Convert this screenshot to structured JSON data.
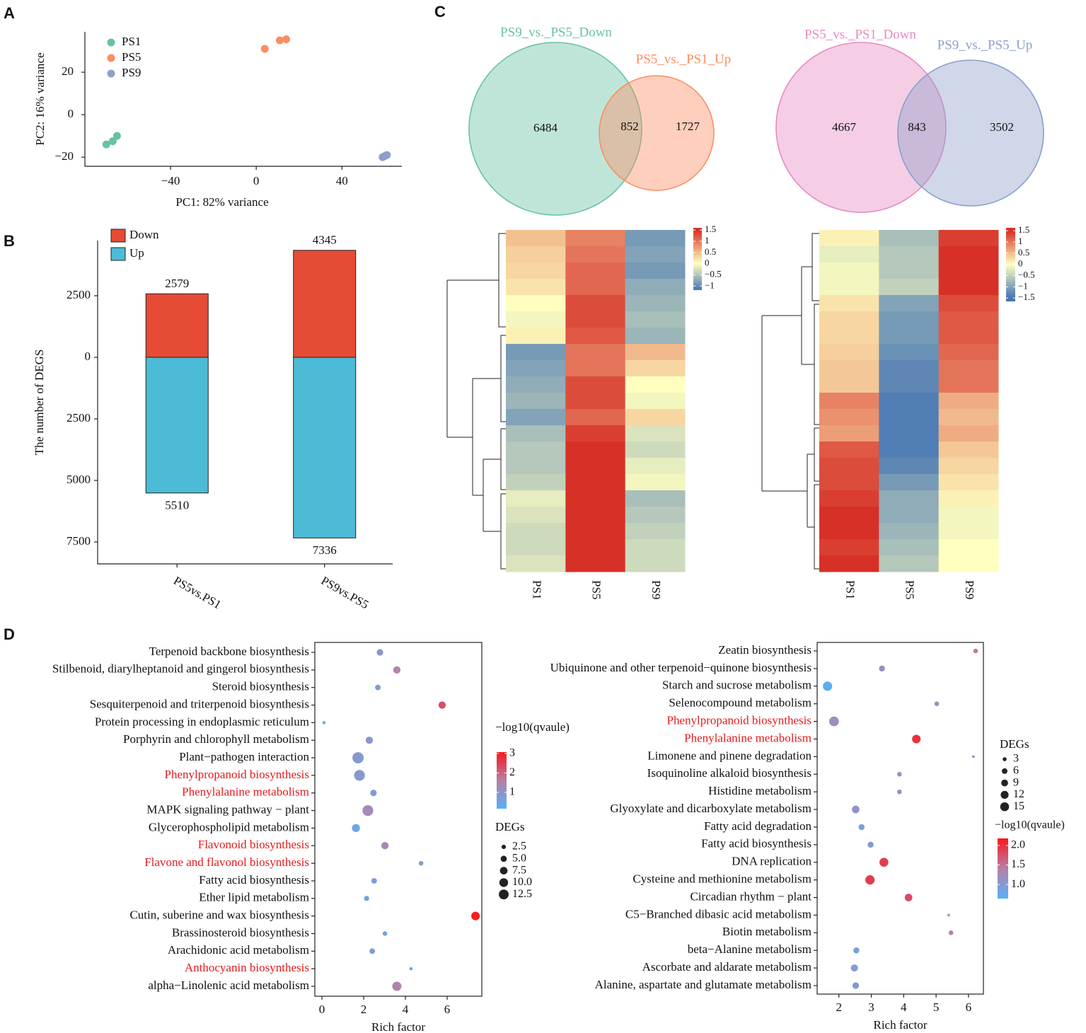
{
  "panels": [
    "A",
    "B",
    "C",
    "D"
  ],
  "chart_data": [
    {
      "type": "scatter",
      "xlabel": "PC1: 82% variance",
      "ylabel": "PC2: 16% variance",
      "xlim": [
        -80,
        68
      ],
      "ylim": [
        -24.3,
        39
      ],
      "xticks": [
        {
          "value": -40,
          "label": "−40"
        },
        0,
        40
      ],
      "yticks": [
        {
          "value": -20,
          "label": "−20"
        },
        0,
        20
      ],
      "legend": "upper left",
      "series": [
        {
          "name": "PS1",
          "color": "#66c2a5",
          "x": [
            -70,
            -67,
            -65
          ],
          "y": [
            -14,
            -12.5,
            -10
          ]
        },
        {
          "name": "PS5",
          "color": "#fc8d62",
          "x": [
            4,
            11,
            14
          ],
          "y": [
            31,
            35,
            35.5
          ]
        },
        {
          "name": "PS9",
          "color": "#8da0cb",
          "x": [
            59,
            60,
            61
          ],
          "y": [
            -20,
            -19.5,
            -19
          ]
        }
      ]
    },
    {
      "type": "bar",
      "ylabel": "The number of DEGS",
      "categories": [
        "PS5vs.PS1",
        "PS9vs.PS5"
      ],
      "ylim": [
        -8390,
        5316
      ],
      "yticks": [
        {
          "value": -7500,
          "label": "7500"
        },
        {
          "value": -5000,
          "label": "5000"
        },
        {
          "value": -2500,
          "label": "2500"
        },
        0,
        2500
      ],
      "legend": "upper left",
      "series": [
        {
          "name": "Down",
          "color": "#e64b35",
          "values": [
            2579,
            4345
          ]
        },
        {
          "name": "Up",
          "color": "#4dbbd5",
          "values": [
            -5510,
            -7336
          ],
          "value_labels": [
            "5510",
            "7336"
          ]
        }
      ]
    },
    {
      "type": "venn",
      "sets": [
        {
          "name": "PS9_vs._PS5_Down",
          "color": "#66c2a5"
        },
        {
          "name": "PS5_vs._PS1_Up",
          "color": "#fc8d62"
        }
      ],
      "counts": [
        6484,
        852,
        1727
      ]
    },
    {
      "type": "venn",
      "sets": [
        {
          "name": "PS5_vs._PS1_Down",
          "color": "#e78ac3"
        },
        {
          "name": "PS9_vs._PS5_Up",
          "color": "#8da0cb"
        }
      ],
      "counts": [
        4667,
        843,
        3502
      ]
    },
    {
      "type": "heatmap",
      "columns": [
        "PS1",
        "PS5",
        "PS9"
      ],
      "values": [
        [
          0.45,
          0.9,
          -1.1
        ],
        [
          0.35,
          1.0,
          -1.0
        ],
        [
          0.3,
          1.1,
          -1.1
        ],
        [
          0.2,
          1.1,
          -0.9
        ],
        [
          0.0,
          1.3,
          -0.8
        ],
        [
          -0.1,
          1.3,
          -0.7
        ],
        [
          0.1,
          1.2,
          -0.8
        ],
        [
          -1.1,
          1.0,
          0.5
        ],
        [
          -1.0,
          1.0,
          0.3
        ],
        [
          -0.9,
          1.3,
          0.0
        ],
        [
          -0.8,
          1.3,
          -0.1
        ],
        [
          -1.0,
          1.1,
          0.3
        ],
        [
          -0.7,
          1.4,
          -0.3
        ],
        [
          -0.6,
          1.5,
          -0.4
        ],
        [
          -0.6,
          1.5,
          -0.2
        ],
        [
          -0.5,
          1.5,
          -0.1
        ],
        [
          -0.2,
          1.5,
          -0.7
        ],
        [
          -0.3,
          1.5,
          -0.6
        ],
        [
          -0.4,
          1.5,
          -0.5
        ],
        [
          -0.4,
          1.5,
          -0.4
        ],
        [
          -0.3,
          1.5,
          -0.4
        ]
      ],
      "clim": [
        -1.18,
        1.6
      ],
      "cticks": [
        1.5,
        1,
        0.5,
        0,
        {
          "value": -0.5,
          "label": "−0.5"
        },
        {
          "value": -1,
          "label": "−1"
        }
      ],
      "color_stops": [
        {
          "value": -1.5,
          "color": "#4575b4"
        },
        {
          "value": 0,
          "color": "#ffffbf"
        },
        {
          "value": 1.5,
          "color": "#d73027"
        }
      ]
    },
    {
      "type": "heatmap",
      "columns": [
        "PS1",
        "PS5",
        "PS9"
      ],
      "values": [
        [
          0.1,
          -0.7,
          1.4
        ],
        [
          -0.2,
          -0.6,
          1.5
        ],
        [
          -0.1,
          -0.6,
          1.5
        ],
        [
          -0.1,
          -0.5,
          1.5
        ],
        [
          0.2,
          -1.0,
          1.3
        ],
        [
          0.3,
          -1.1,
          1.2
        ],
        [
          0.3,
          -1.1,
          1.2
        ],
        [
          0.35,
          -1.2,
          1.1
        ],
        [
          0.4,
          -1.3,
          1.0
        ],
        [
          0.4,
          -1.3,
          1.0
        ],
        [
          0.9,
          -1.4,
          0.6
        ],
        [
          0.8,
          -1.4,
          0.5
        ],
        [
          0.7,
          -1.4,
          0.6
        ],
        [
          1.2,
          -1.4,
          0.4
        ],
        [
          1.3,
          -1.3,
          0.3
        ],
        [
          1.3,
          -1.1,
          0.2
        ],
        [
          1.4,
          -0.9,
          0.1
        ],
        [
          1.5,
          -0.9,
          -0.1
        ],
        [
          1.5,
          -0.8,
          -0.1
        ],
        [
          1.4,
          -0.7,
          0.0
        ],
        [
          1.5,
          -0.6,
          0.0
        ]
      ],
      "clim": [
        -1.65,
        1.63
      ],
      "cticks": [
        1.5,
        1,
        0.5,
        0,
        {
          "value": -0.5,
          "label": "−0.5"
        },
        {
          "value": -1,
          "label": "−1"
        },
        {
          "value": -1.5,
          "label": "−1.5"
        }
      ],
      "color_stops": [
        {
          "value": -1.5,
          "color": "#4575b4"
        },
        {
          "value": 0,
          "color": "#ffffbf"
        },
        {
          "value": 1.5,
          "color": "#d73027"
        }
      ]
    },
    {
      "type": "bubble",
      "xlabel": "Rich factor",
      "xlim": [
        -0.34,
        7.66
      ],
      "xticks": [
        0,
        2,
        4,
        6
      ],
      "categories": [
        "Terpenoid backbone biosynthesis",
        "Stilbenoid, diarylheptanoid and gingerol biosynthesis",
        "Steroid biosynthesis",
        "Sesquiterpenoid and triterpenoid biosynthesis",
        "Protein processing in endoplasmic reticulum",
        "Porphyrin and chlorophyll metabolism",
        "Plant−pathogen interaction",
        "Phenylpropanoid biosynthesis",
        "Phenylalanine metabolism",
        "MAPK signaling pathway − plant",
        "Glycerophospholipid metabolism",
        "Flavonoid biosynthesis",
        "Flavone and flavonol biosynthesis",
        "Fatty acid biosynthesis",
        "Ether lipid metabolism",
        "Cutin, suberine and wax biosynthesis",
        "Brassinosteroid biosynthesis",
        "Arachidonic acid metabolism",
        "Anthocyanin biosynthesis",
        "alpha−Linolenic acid metabolism"
      ],
      "label_colors": [
        "#111111",
        "#111111",
        "#111111",
        "#111111",
        "#111111",
        "#111111",
        "#111111",
        "#e41a1c",
        "#e41a1c",
        "#111111",
        "#111111",
        "#e41a1c",
        "#e41a1c",
        "#111111",
        "#111111",
        "#111111",
        "#111111",
        "#111111",
        "#e41a1c",
        "#111111"
      ],
      "x": [
        2.78,
        3.59,
        2.68,
        5.76,
        0.1,
        2.27,
        1.73,
        1.8,
        2.47,
        2.2,
        1.63,
        3.02,
        4.75,
        2.5,
        2.14,
        7.36,
        3.02,
        2.41,
        4.27,
        3.59
      ],
      "size": [
        4,
        5,
        3,
        5,
        1,
        5,
        12,
        11,
        4,
        11,
        6,
        5,
        2,
        3,
        2.5,
        7,
        2,
        3,
        1,
        8
      ],
      "color_value": [
        0.9,
        1.5,
        0.8,
        2.3,
        0.3,
        0.9,
        0.9,
        0.9,
        0.8,
        1.3,
        0.5,
        1.4,
        0.8,
        0.7,
        0.6,
        3.0,
        0.6,
        0.7,
        0.5,
        1.5
      ],
      "color_title": "−log10(qvaule)",
      "clim": [
        0.16,
        3.07
      ],
      "cticks": [
        1,
        2,
        3
      ],
      "colors": [
        "#56b1f7",
        "#b77fa8",
        "#f8191b"
      ],
      "size_title": "DEGs",
      "size_ticks": [
        2.5,
        {
          "value": 5,
          "label": "5.0"
        },
        7.5,
        {
          "value": 10,
          "label": "10.0"
        },
        12.5
      ]
    },
    {
      "type": "bubble",
      "xlabel": "Rich factor",
      "xlim": [
        1.33,
        6.46
      ],
      "xticks": [
        2,
        3,
        4,
        5,
        6
      ],
      "categories": [
        "Zeatin biosynthesis",
        "Ubiquinone and other terpenoid−quinone biosynthesis",
        "Starch and sucrose metabolism",
        "Selenocompound metabolism",
        "Phenylpropanoid biosynthesis",
        "Phenylalanine metabolism",
        "Limonene and pinene degradation",
        "Isoquinoline alkaloid biosynthesis",
        "Histidine metabolism",
        "Glyoxylate and dicarboxylate metabolism",
        "Fatty acid degradation",
        "Fatty acid biosynthesis",
        "DNA replication",
        "Cysteine and methionine metabolism",
        "Circadian rhythm − plant",
        "C5−Branched dibasic acid metabolism",
        "Biotin metabolism",
        "beta−Alanine metabolism",
        "Ascorbate and aldarate metabolism",
        "Alanine, aspartate and glutamate metabolism"
      ],
      "label_colors": [
        "#111111",
        "#111111",
        "#111111",
        "#111111",
        "#e41a1c",
        "#e41a1c",
        "#111111",
        "#111111",
        "#111111",
        "#111111",
        "#111111",
        "#111111",
        "#111111",
        "#111111",
        "#111111",
        "#111111",
        "#111111",
        "#111111",
        "#111111",
        "#111111"
      ],
      "x": [
        6.22,
        3.33,
        1.65,
        5.02,
        1.85,
        4.39,
        6.15,
        3.87,
        3.87,
        2.52,
        2.7,
        2.98,
        3.39,
        2.96,
        4.15,
        5.39,
        5.46,
        2.54,
        2.48,
        2.52
      ],
      "size": [
        3,
        5,
        12,
        3,
        13,
        10,
        1,
        3,
        3,
        8,
        5,
        5,
        11,
        12,
        8,
        1,
        3,
        5,
        7,
        6
      ],
      "color_value": [
        1.4,
        1.2,
        0.7,
        1.2,
        1.2,
        2.0,
        1.2,
        1.1,
        1.1,
        1.1,
        0.9,
        1.0,
        1.9,
        1.9,
        1.8,
        1.2,
        1.4,
        0.9,
        1.0,
        1.0
      ],
      "color_title": "−log10(qvaule)",
      "clim": [
        0.64,
        2.18
      ],
      "cticks": [
        {
          "value": 1,
          "label": "1.0"
        },
        1.5,
        {
          "value": 2,
          "label": "2.0"
        }
      ],
      "colors": [
        "#56b1f7",
        "#b77fa8",
        "#f8191b"
      ],
      "size_title": "DEGs",
      "size_ticks": [
        3,
        6,
        9,
        12,
        15
      ]
    }
  ]
}
